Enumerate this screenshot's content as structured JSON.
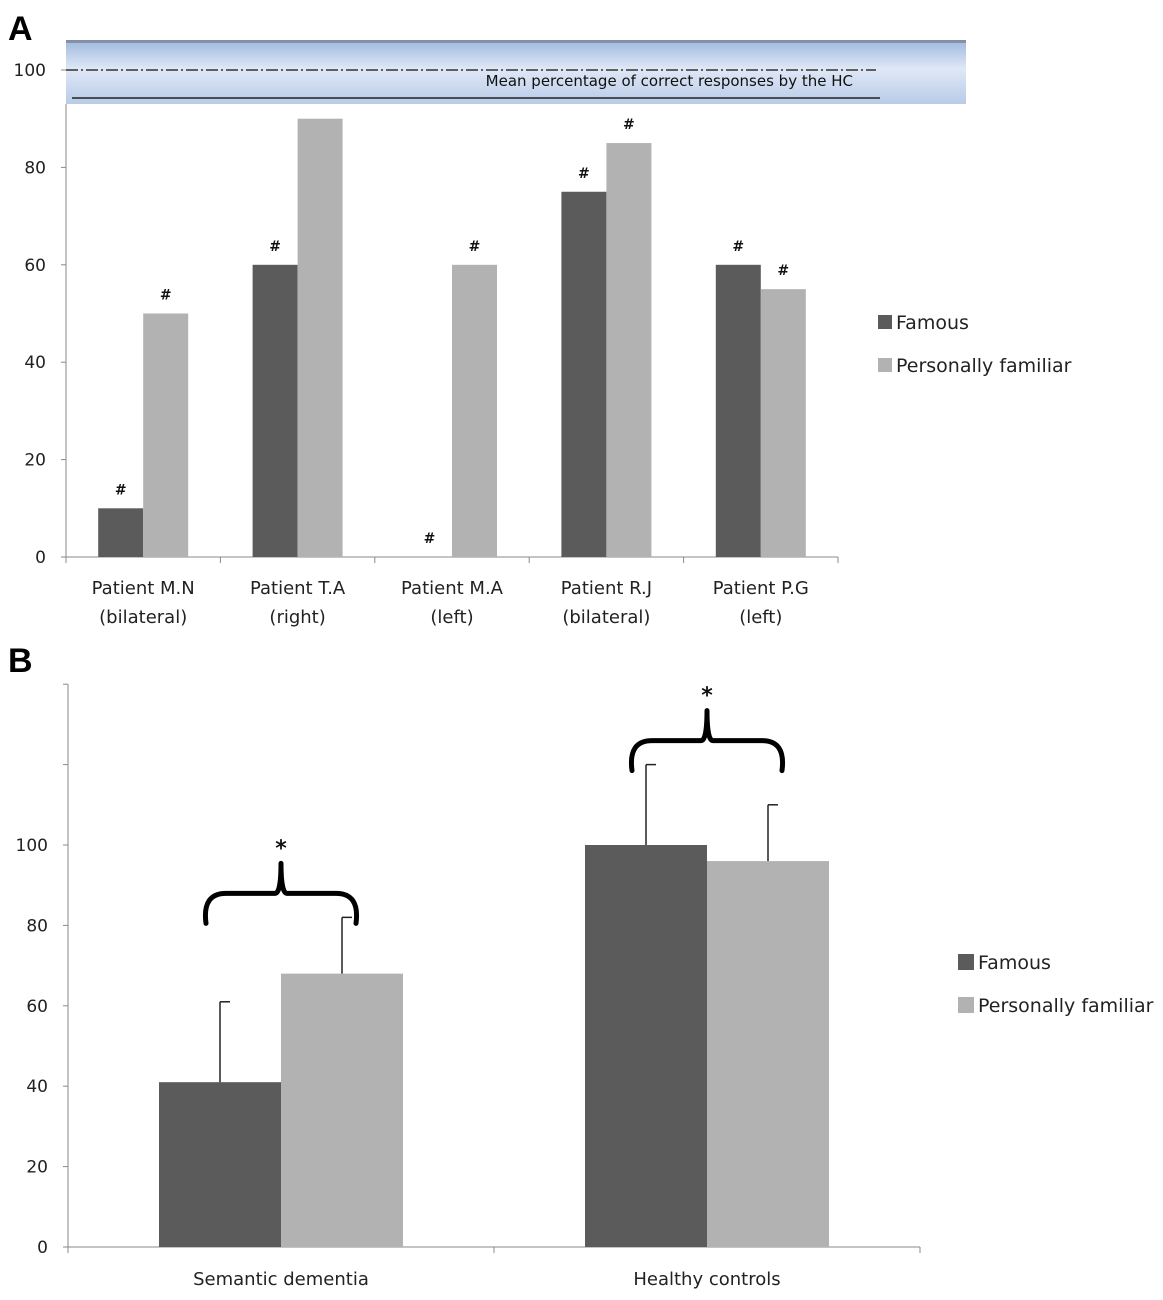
{
  "colors": {
    "famous": "#5b5b5b",
    "personally_familiar": "#b2b2b2",
    "axis": "#888888"
  },
  "chart_data": [
    {
      "panel": "A",
      "type": "bar",
      "categories": [
        [
          "Patient M.N",
          "(bilateral)"
        ],
        [
          "Patient T.A",
          "(right)"
        ],
        [
          "Patient M.A",
          "(left)"
        ],
        [
          "Patient R.J",
          "(bilateral)"
        ],
        [
          "Patient P.G",
          "(left)"
        ]
      ],
      "series": [
        {
          "name": "Famous",
          "values": [
            10,
            60,
            0,
            75,
            60
          ],
          "marks": [
            "#",
            "#",
            "#",
            "#",
            "#"
          ]
        },
        {
          "name": "Personally familiar",
          "values": [
            50,
            90,
            60,
            85,
            55
          ],
          "marks": [
            "#",
            "",
            "#",
            "#",
            "#"
          ]
        }
      ],
      "yticks": [
        0,
        20,
        40,
        60,
        80,
        100
      ],
      "ylim": [
        0,
        100
      ],
      "reference_line": {
        "value": 100,
        "label": "Mean percentage of correct responses by the HC"
      },
      "legend": "right"
    },
    {
      "panel": "B",
      "type": "bar",
      "categories": [
        "Semantic dementia",
        "Healthy controls"
      ],
      "series": [
        {
          "name": "Famous",
          "values": [
            41,
            100
          ],
          "errors": [
            20,
            20
          ]
        },
        {
          "name": "Personally familiar",
          "values": [
            68,
            96
          ],
          "errors": [
            14,
            14
          ]
        }
      ],
      "significance": [
        "*",
        "*"
      ],
      "yticks": [
        0,
        20,
        40,
        60,
        80,
        100
      ],
      "ylim": [
        0,
        140
      ],
      "legend": "right"
    }
  ]
}
